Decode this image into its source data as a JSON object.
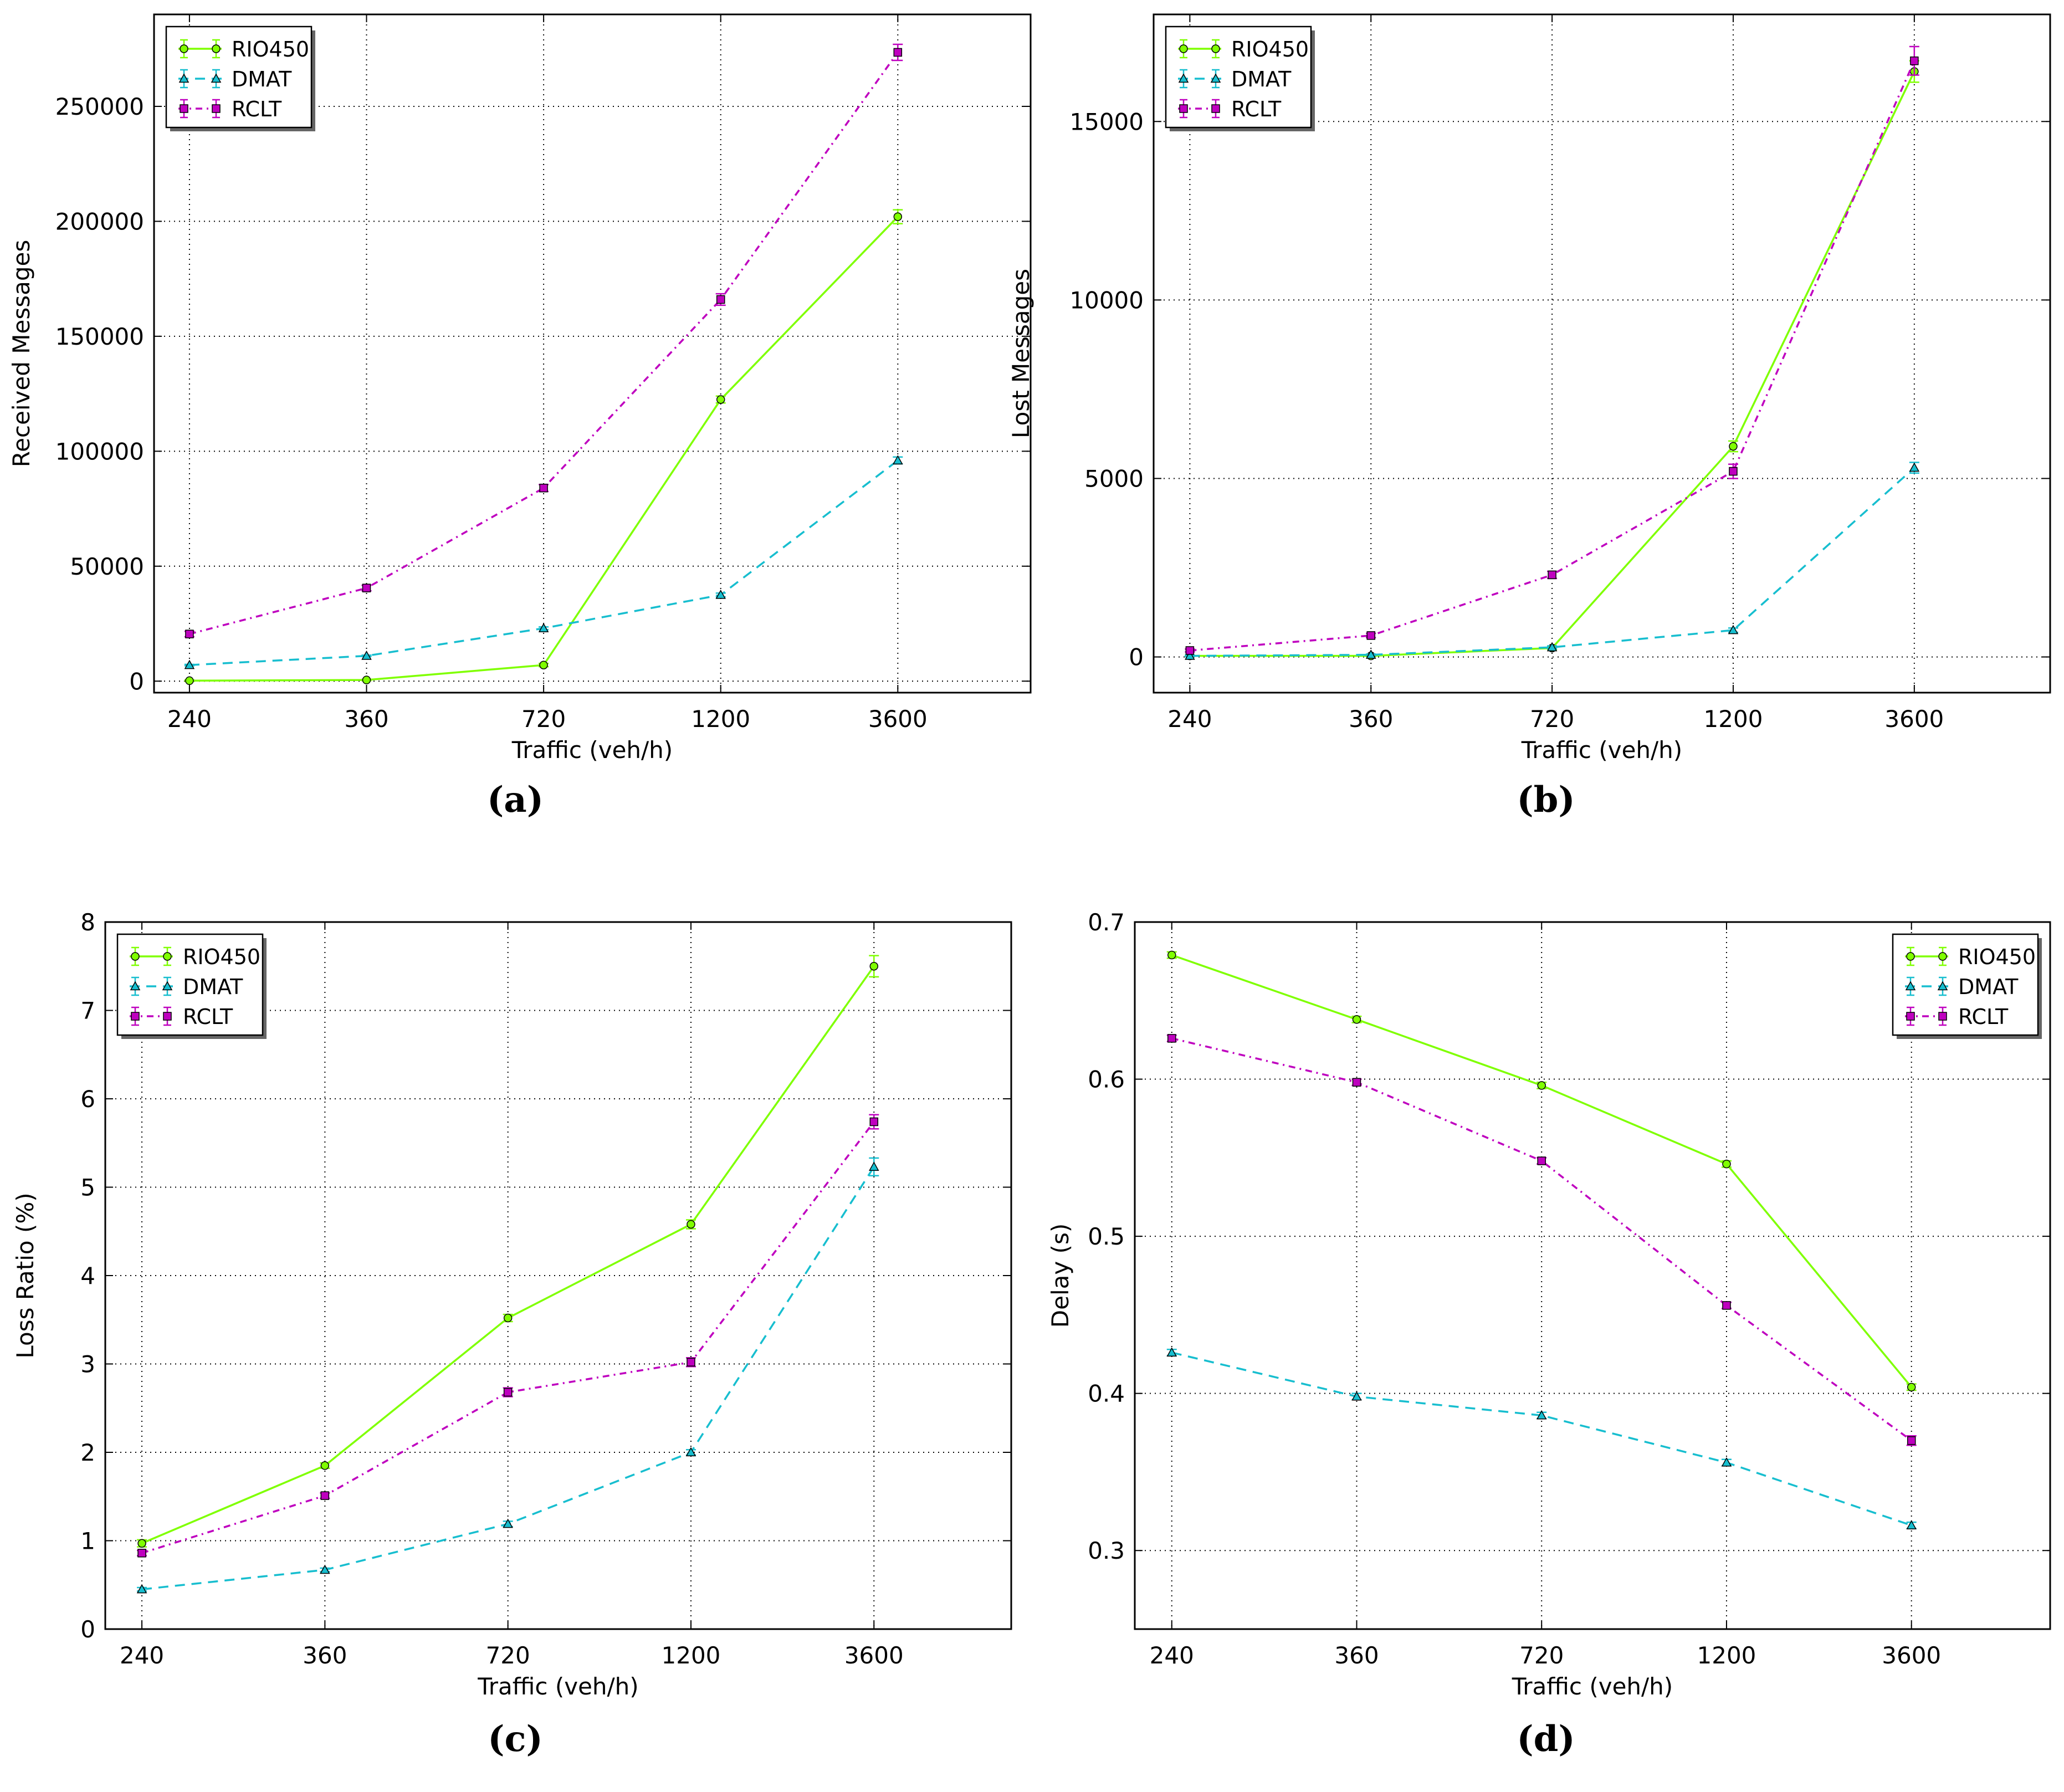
{
  "colors": {
    "RIO450": "#7fff00",
    "DMAT": "#17becf",
    "RCLT": "#bf00bf"
  },
  "legend_labels": [
    "RIO450",
    "DMAT",
    "RCLT"
  ],
  "chart_data": [
    {
      "type": "line",
      "panel_label": "(a)",
      "categories": [
        "240",
        "360",
        "720",
        "1200",
        "3600"
      ],
      "xlabel": "Traffic (veh/h)",
      "ylabel": "Received Messages",
      "ylim": [
        -5000,
        290000
      ],
      "yticks": [
        0,
        50000,
        100000,
        150000,
        200000,
        250000
      ],
      "ytick_labels": [
        "0",
        "50000",
        "100000",
        "150000",
        "200000",
        "250000"
      ],
      "legend_position": "top-left",
      "grid": true,
      "series": [
        {
          "name": "RIO450",
          "values": [
            200,
            500,
            7000,
            122500,
            202000
          ],
          "errors": [
            300,
            300,
            700,
            1500,
            3000
          ]
        },
        {
          "name": "DMAT",
          "values": [
            7000,
            11000,
            23000,
            37500,
            96000
          ],
          "errors": [
            300,
            300,
            600,
            800,
            1500
          ]
        },
        {
          "name": "RCLT",
          "values": [
            20500,
            40500,
            84000,
            166000,
            273500
          ],
          "errors": [
            1200,
            1200,
            1500,
            2500,
            3500
          ]
        }
      ]
    },
    {
      "type": "line",
      "panel_label": "(b)",
      "categories": [
        "240",
        "360",
        "720",
        "1200",
        "3600"
      ],
      "xlabel": "Traffic (veh/h)",
      "ylabel": "Lost Messages",
      "ylim": [
        -1000,
        18000
      ],
      "yticks": [
        0,
        5000,
        10000,
        15000
      ],
      "ytick_labels": [
        "0",
        "5000",
        "10000",
        "15000"
      ],
      "legend_position": "top-left",
      "grid": true,
      "series": [
        {
          "name": "RIO450",
          "values": [
            30,
            30,
            250,
            5900,
            16400
          ],
          "errors": [
            20,
            20,
            40,
            150,
            300
          ]
        },
        {
          "name": "DMAT",
          "values": [
            30,
            60,
            270,
            750,
            5300
          ],
          "errors": [
            20,
            20,
            40,
            60,
            150
          ]
        },
        {
          "name": "RCLT",
          "values": [
            180,
            600,
            2300,
            5200,
            16700
          ],
          "errors": [
            40,
            60,
            100,
            200,
            400
          ]
        }
      ]
    },
    {
      "type": "line",
      "panel_label": "(c)",
      "categories": [
        "240",
        "360",
        "720",
        "1200",
        "3600"
      ],
      "xlabel": "Traffic (veh/h)",
      "ylabel": "Loss Ratio (%)",
      "ylim": [
        0,
        8
      ],
      "yticks": [
        0,
        1,
        2,
        3,
        4,
        5,
        6,
        7,
        8
      ],
      "ytick_labels": [
        "0",
        "1",
        "2",
        "3",
        "4",
        "5",
        "6",
        "7",
        "8"
      ],
      "legend_position": "top-left",
      "grid": true,
      "series": [
        {
          "name": "RIO450",
          "values": [
            0.97,
            1.85,
            3.52,
            4.58,
            7.5
          ],
          "errors": [
            0.04,
            0.03,
            0.04,
            0.05,
            0.12
          ]
        },
        {
          "name": "DMAT",
          "values": [
            0.45,
            0.67,
            1.19,
            2.0,
            5.23
          ],
          "errors": [
            0.02,
            0.02,
            0.03,
            0.03,
            0.1
          ]
        },
        {
          "name": "RCLT",
          "values": [
            0.86,
            1.51,
            2.68,
            3.02,
            5.74
          ],
          "errors": [
            0.03,
            0.03,
            0.05,
            0.05,
            0.08
          ]
        }
      ]
    },
    {
      "type": "line",
      "panel_label": "(d)",
      "categories": [
        "240",
        "360",
        "720",
        "1200",
        "3600"
      ],
      "xlabel": "Traffic (veh/h)",
      "ylabel": "Delay (s)",
      "ylim": [
        0.25,
        0.7
      ],
      "yticks": [
        0.3,
        0.4,
        0.5,
        0.6,
        0.7
      ],
      "ytick_labels": [
        "0.3",
        "0.4",
        "0.5",
        "0.6",
        "0.7"
      ],
      "legend_position": "top-right",
      "grid": true,
      "series": [
        {
          "name": "RIO450",
          "values": [
            0.679,
            0.638,
            0.596,
            0.546,
            0.404
          ],
          "errors": [
            0.002,
            0.002,
            0.002,
            0.002,
            0.002
          ]
        },
        {
          "name": "DMAT",
          "values": [
            0.426,
            0.398,
            0.386,
            0.356,
            0.316
          ],
          "errors": [
            0.002,
            0.002,
            0.002,
            0.002,
            0.002
          ]
        },
        {
          "name": "RCLT",
          "values": [
            0.626,
            0.598,
            0.548,
            0.456,
            0.37
          ],
          "errors": [
            0.002,
            0.002,
            0.002,
            0.002,
            0.003
          ]
        }
      ]
    }
  ]
}
